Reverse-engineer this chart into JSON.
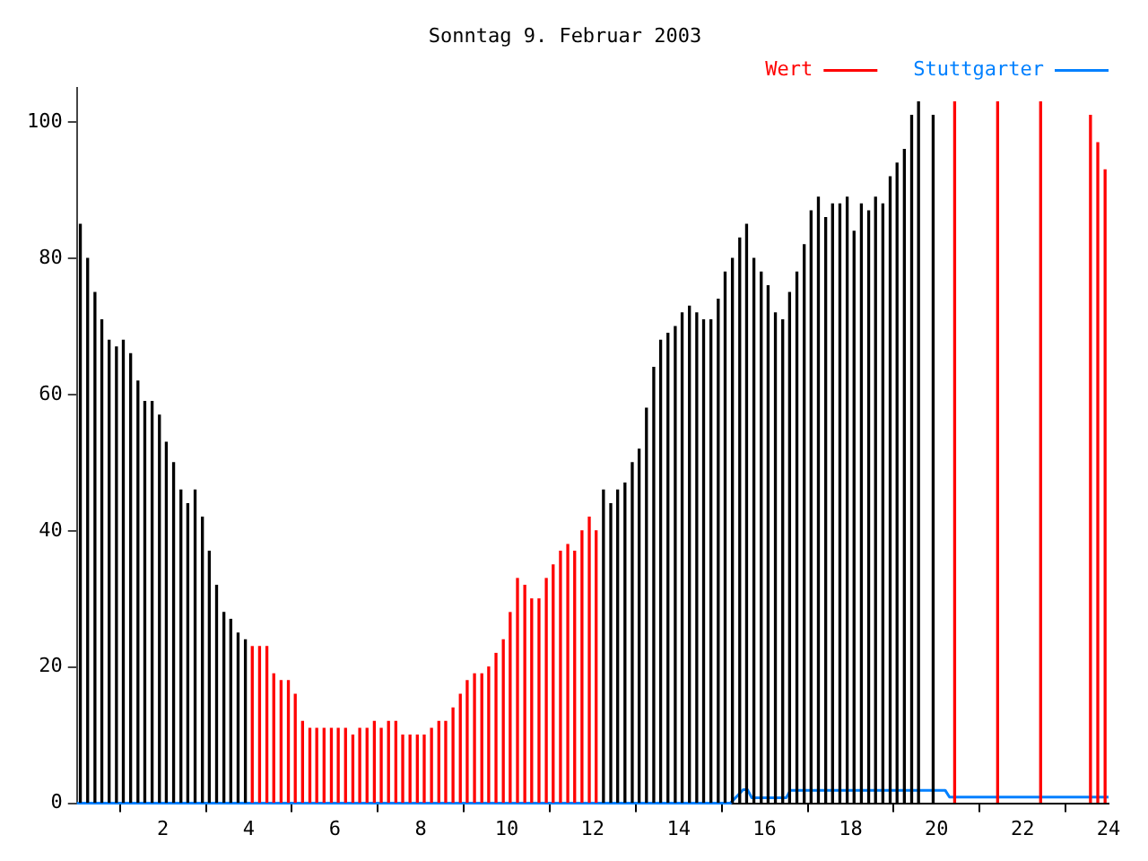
{
  "chart_data": {
    "type": "bar",
    "title": "Sonntag 9. Februar 2003",
    "xlim": [
      0,
      24
    ],
    "xticks": [
      2,
      4,
      6,
      8,
      10,
      12,
      14,
      16,
      18,
      20,
      22,
      24
    ],
    "ylim": [
      0,
      105
    ],
    "yticks": [
      0,
      20,
      40,
      60,
      80,
      100
    ],
    "grid": false,
    "legend": "top right",
    "series": [
      {
        "name": "Wert",
        "color": "#ff0000",
        "x": [
          0.08,
          0.25,
          0.42,
          0.58,
          0.75,
          0.92,
          1.08,
          1.25,
          1.42,
          1.58,
          1.75,
          1.92,
          2.08,
          2.25,
          2.42,
          2.58,
          2.75,
          2.92,
          3.08,
          3.25,
          3.42,
          3.58,
          3.75,
          3.92,
          4.08,
          4.25,
          4.42,
          4.58,
          4.75,
          4.92,
          5.08,
          5.25,
          5.42,
          5.58,
          5.75,
          5.92,
          6.08,
          6.25,
          6.42,
          6.58,
          6.75,
          6.92,
          7.08,
          7.25,
          7.42,
          7.58,
          7.75,
          7.92,
          8.08,
          8.25,
          8.42,
          8.58,
          8.75,
          8.92,
          9.08,
          9.25,
          9.42,
          9.58,
          9.75,
          9.92,
          10.08,
          10.25,
          10.42,
          10.58,
          10.75,
          10.92,
          11.08,
          11.25,
          11.42,
          11.58,
          11.75,
          11.92,
          12.08,
          12.25,
          12.42,
          12.58,
          12.75,
          12.92,
          13.08,
          13.25,
          13.42,
          13.58,
          13.75,
          13.92,
          14.08,
          14.25,
          14.42,
          14.58,
          14.75,
          14.92,
          15.08,
          15.25,
          15.42,
          15.58,
          15.75,
          15.92,
          16.08,
          16.25,
          16.42,
          16.58,
          16.75,
          16.92,
          17.08,
          17.25,
          17.42,
          17.58,
          17.75,
          17.92,
          18.08,
          18.25,
          18.42,
          18.58,
          18.75,
          18.92,
          19.08,
          19.25,
          19.42,
          19.58,
          19.75,
          19.92,
          20.08,
          20.25,
          20.42,
          20.58,
          20.75,
          20.92,
          21.08,
          21.25,
          21.42,
          21.58,
          21.75,
          21.92,
          22.08,
          22.25,
          22.42,
          22.58,
          22.75,
          22.92,
          23.08,
          23.25,
          23.42,
          23.58,
          23.75,
          23.92
        ],
        "values": [
          85,
          80,
          75,
          71,
          68,
          67,
          68,
          66,
          62,
          59,
          59,
          57,
          53,
          50,
          46,
          44,
          46,
          42,
          37,
          32,
          28,
          27,
          25,
          24,
          23,
          23,
          23,
          19,
          18,
          18,
          16,
          12,
          11,
          11,
          11,
          11,
          11,
          11,
          10,
          11,
          11,
          12,
          11,
          12,
          12,
          10,
          10,
          10,
          10,
          11,
          12,
          12,
          14,
          16,
          18,
          19,
          19,
          20,
          22,
          24,
          28,
          33,
          32,
          30,
          30,
          33,
          35,
          37,
          38,
          37,
          40,
          42,
          40,
          46,
          44,
          46,
          47,
          50,
          52,
          58,
          64,
          68,
          69,
          70,
          72,
          73,
          72,
          71,
          71,
          74,
          78,
          80,
          83,
          85,
          80,
          78,
          76,
          72,
          71,
          75,
          78,
          82,
          87,
          89,
          86,
          88,
          88,
          89,
          84,
          88,
          87,
          89,
          88,
          92,
          94,
          96,
          101,
          103,
          null,
          101,
          null,
          null,
          103,
          null,
          null,
          null,
          null,
          null,
          103,
          null,
          null,
          null,
          null,
          null,
          103,
          null,
          null,
          null,
          null,
          null,
          null,
          101,
          97,
          93
        ],
        "colors": [
          "#000000",
          "#000000",
          "#000000",
          "#000000",
          "#000000",
          "#000000",
          "#000000",
          "#000000",
          "#000000",
          "#000000",
          "#000000",
          "#000000",
          "#000000",
          "#000000",
          "#000000",
          "#000000",
          "#000000",
          "#000000",
          "#000000",
          "#000000",
          "#000000",
          "#000000",
          "#000000",
          "#000000",
          "#ff0000",
          "#ff0000",
          "#ff0000",
          "#ff0000",
          "#ff0000",
          "#ff0000",
          "#ff0000",
          "#ff0000",
          "#ff0000",
          "#ff0000",
          "#ff0000",
          "#ff0000",
          "#ff0000",
          "#ff0000",
          "#ff0000",
          "#ff0000",
          "#ff0000",
          "#ff0000",
          "#ff0000",
          "#ff0000",
          "#ff0000",
          "#ff0000",
          "#ff0000",
          "#ff0000",
          "#ff0000",
          "#ff0000",
          "#ff0000",
          "#ff0000",
          "#ff0000",
          "#ff0000",
          "#ff0000",
          "#ff0000",
          "#ff0000",
          "#ff0000",
          "#ff0000",
          "#ff0000",
          "#ff0000",
          "#ff0000",
          "#ff0000",
          "#ff0000",
          "#ff0000",
          "#ff0000",
          "#ff0000",
          "#ff0000",
          "#ff0000",
          "#ff0000",
          "#ff0000",
          "#ff0000",
          "#ff0000",
          "#000000",
          "#000000",
          "#000000",
          "#000000",
          "#000000",
          "#000000",
          "#000000",
          "#000000",
          "#000000",
          "#000000",
          "#000000",
          "#000000",
          "#000000",
          "#000000",
          "#000000",
          "#000000",
          "#000000",
          "#000000",
          "#000000",
          "#000000",
          "#000000",
          "#000000",
          "#000000",
          "#000000",
          "#000000",
          "#000000",
          "#000000",
          "#000000",
          "#000000",
          "#000000",
          "#000000",
          "#000000",
          "#000000",
          "#000000",
          "#000000",
          "#000000",
          "#000000",
          "#000000",
          "#000000",
          "#000000",
          "#000000",
          "#000000",
          "#000000",
          "#000000",
          "#000000",
          "#000000",
          "#000000",
          "#ff0000",
          "#ff0000",
          "#ff0000",
          "#ff0000",
          "#ff0000",
          "#ff0000",
          "#ff0000",
          "#ff0000",
          "#ff0000",
          "#ff0000",
          "#ff0000",
          "#ff0000",
          "#ff0000",
          "#ff0000",
          "#ff0000",
          "#ff0000",
          "#ff0000",
          "#ff0000",
          "#ff0000",
          "#ff0000",
          "#ff0000",
          "#ff0000",
          "#ff0000",
          "#ff0000"
        ]
      },
      {
        "name": "Stuttgarter",
        "type": "line",
        "color": "#0080ff",
        "x": [
          0,
          15.2,
          15.5,
          15.6,
          15.7,
          16.5,
          16.6,
          20.2,
          20.3,
          24
        ],
        "values": [
          0,
          0,
          2,
          2,
          0.8,
          0.8,
          1.9,
          1.9,
          0.9,
          0.9
        ]
      }
    ]
  }
}
